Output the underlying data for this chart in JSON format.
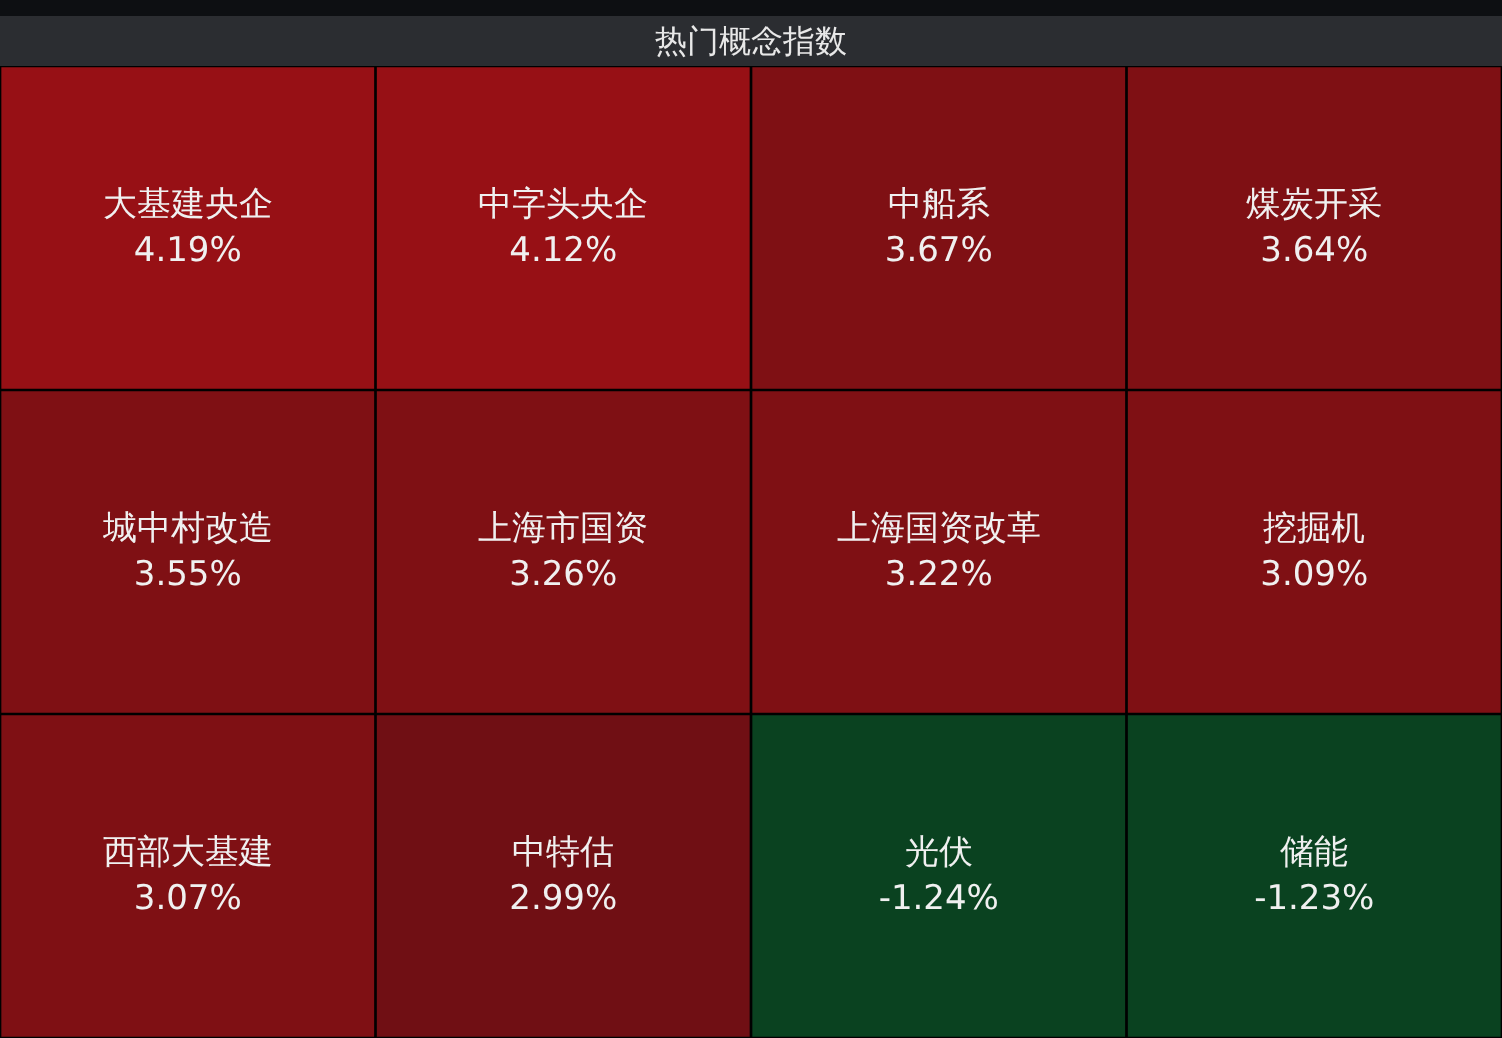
{
  "chart_data": {
    "type": "other",
    "title": "热门概念指数",
    "categories": [
      "大基建央企",
      "中字头央企",
      "中船系",
      "煤炭开采",
      "城中村改造",
      "上海市国资",
      "上海国资改革",
      "挖掘机",
      "西部大基建",
      "中特估",
      "光伏",
      "储能"
    ],
    "values": [
      4.19,
      4.12,
      3.67,
      3.64,
      3.55,
      3.26,
      3.22,
      3.09,
      3.07,
      2.99,
      -1.24,
      -1.23
    ],
    "value_labels": [
      "4.19%",
      "4.12%",
      "3.67%",
      "3.64%",
      "3.55%",
      "3.26%",
      "3.22%",
      "3.09%",
      "3.07%",
      "2.99%",
      "-1.24%",
      "-1.23%"
    ],
    "colors": [
      "#971015",
      "#971015",
      "#7f1014",
      "#7f1014",
      "#7f1014",
      "#7f1014",
      "#7f1014",
      "#7f1014",
      "#7f1014",
      "#700f14",
      "#0a4220",
      "#0a4220"
    ]
  }
}
